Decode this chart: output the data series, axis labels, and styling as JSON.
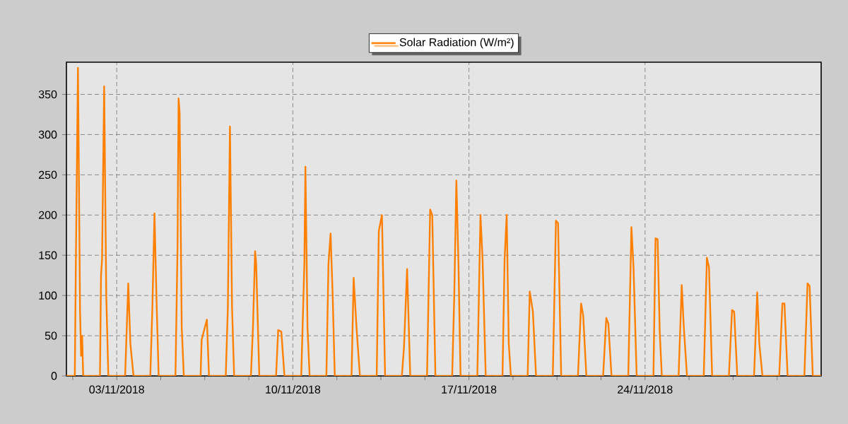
{
  "chart_data": {
    "type": "line",
    "legend": "top",
    "grid": true,
    "marker": "none",
    "line_style": "solid",
    "xlim": [
      "2018-11-01T00:00",
      "2018-12-01T00:00"
    ],
    "ylim": [
      0,
      390
    ],
    "yticks": [
      0,
      50,
      100,
      150,
      200,
      250,
      300,
      350
    ],
    "xticks": [
      {
        "value": "2018-11-01T06:00",
        "label": null
      },
      {
        "value": "2018-11-03T00:00",
        "label": "03/11/2018"
      },
      {
        "value": "2018-11-04T18:00",
        "label": null
      },
      {
        "value": "2018-11-06T12:00",
        "label": null
      },
      {
        "value": "2018-11-08T06:00",
        "label": null
      },
      {
        "value": "2018-11-10T00:00",
        "label": "10/11/2018"
      },
      {
        "value": "2018-11-11T18:00",
        "label": null
      },
      {
        "value": "2018-11-13T12:00",
        "label": null
      },
      {
        "value": "2018-11-15T06:00",
        "label": null
      },
      {
        "value": "2018-11-17T00:00",
        "label": "17/11/2018"
      },
      {
        "value": "2018-11-18T18:00",
        "label": null
      },
      {
        "value": "2018-11-20T12:00",
        "label": null
      },
      {
        "value": "2018-11-22T06:00",
        "label": null
      },
      {
        "value": "2018-11-24T00:00",
        "label": "24/11/2018"
      },
      {
        "value": "2018-11-25T18:00",
        "label": null
      },
      {
        "value": "2018-11-27T12:00",
        "label": null
      },
      {
        "value": "2018-11-29T06:00",
        "label": null
      }
    ],
    "series": [
      {
        "name": "Solar Radiation (W/m²)",
        "color": "#ff8000",
        "x": [
          "2018-11-01T00:00",
          "2018-11-01T08:00",
          "2018-11-01T09:00",
          "2018-11-01T11:00",
          "2018-11-01T13:00",
          "2018-11-01T14:00",
          "2018-11-01T15:00",
          "2018-11-01T16:00",
          "2018-11-02T08:00",
          "2018-11-02T09:00",
          "2018-11-02T10:00",
          "2018-11-02T12:00",
          "2018-11-02T14:00",
          "2018-11-02T16:00",
          "2018-11-03T08:00",
          "2018-11-03T11:00",
          "2018-11-03T13:00",
          "2018-11-03T16:00",
          "2018-11-04T08:00",
          "2018-11-04T10:00",
          "2018-11-04T12:00",
          "2018-11-04T14:00",
          "2018-11-04T16:00",
          "2018-11-05T08:00",
          "2018-11-05T10:00",
          "2018-11-05T11:00",
          "2018-11-05T12:00",
          "2018-11-05T14:00",
          "2018-11-05T16:00",
          "2018-11-06T08:00",
          "2018-11-06T09:00",
          "2018-11-06T14:00",
          "2018-11-06T16:00",
          "2018-11-07T08:00",
          "2018-11-07T10:00",
          "2018-11-07T12:00",
          "2018-11-07T14:00",
          "2018-11-07T16:00",
          "2018-11-08T08:00",
          "2018-11-08T10:00",
          "2018-11-08T12:00",
          "2018-11-08T13:00",
          "2018-11-08T16:00",
          "2018-11-09T08:00",
          "2018-11-09T10:00",
          "2018-11-09T13:00",
          "2018-11-09T16:00",
          "2018-11-10T08:00",
          "2018-11-10T11:00",
          "2018-11-10T12:00",
          "2018-11-10T14:00",
          "2018-11-10T16:00",
          "2018-11-11T08:00",
          "2018-11-11T10:00",
          "2018-11-11T12:00",
          "2018-11-11T14:00",
          "2018-11-11T16:00",
          "2018-11-12T08:00",
          "2018-11-12T10:00",
          "2018-11-12T13:00",
          "2018-11-12T16:00",
          "2018-11-13T08:00",
          "2018-11-13T10:00",
          "2018-11-13T13:00",
          "2018-11-13T16:00",
          "2018-11-14T08:00",
          "2018-11-14T10:00",
          "2018-11-14T13:00",
          "2018-11-14T16:00",
          "2018-11-15T08:00",
          "2018-11-15T11:00",
          "2018-11-15T13:00",
          "2018-11-15T16:00",
          "2018-11-16T08:00",
          "2018-11-16T10:00",
          "2018-11-16T12:00",
          "2018-11-16T14:00",
          "2018-11-16T16:00",
          "2018-11-17T08:00",
          "2018-11-17T11:00",
          "2018-11-17T13:00",
          "2018-11-17T16:00",
          "2018-11-18T08:00",
          "2018-11-18T10:00",
          "2018-11-18T12:00",
          "2018-11-18T14:00",
          "2018-11-18T16:00",
          "2018-11-19T08:00",
          "2018-11-19T10:00",
          "2018-11-19T13:00",
          "2018-11-19T16:00",
          "2018-11-20T08:00",
          "2018-11-20T11:00",
          "2018-11-20T13:00",
          "2018-11-20T16:00",
          "2018-11-21T08:00",
          "2018-11-21T11:00",
          "2018-11-21T13:00",
          "2018-11-21T16:00",
          "2018-11-22T08:00",
          "2018-11-22T11:00",
          "2018-11-22T13:00",
          "2018-11-22T16:00",
          "2018-11-23T08:00",
          "2018-11-23T11:00",
          "2018-11-23T13:00",
          "2018-11-23T16:00",
          "2018-11-24T08:00",
          "2018-11-24T10:00",
          "2018-11-24T12:00",
          "2018-11-24T14:00",
          "2018-11-24T16:00",
          "2018-11-25T08:00",
          "2018-11-25T11:00",
          "2018-11-25T13:00",
          "2018-11-25T16:00",
          "2018-11-26T08:00",
          "2018-11-26T11:00",
          "2018-11-26T13:00",
          "2018-11-26T16:00",
          "2018-11-27T08:00",
          "2018-11-27T11:00",
          "2018-11-27T13:00",
          "2018-11-27T16:00",
          "2018-11-28T08:00",
          "2018-11-28T11:00",
          "2018-11-28T13:00",
          "2018-11-28T16:00",
          "2018-11-29T08:00",
          "2018-11-29T11:00",
          "2018-11-29T13:00",
          "2018-11-29T16:00",
          "2018-11-30T08:00",
          "2018-11-30T11:00",
          "2018-11-30T13:00",
          "2018-11-30T16:00",
          "2018-12-01T00:00"
        ],
        "values": [
          0,
          0,
          140,
          383,
          80,
          25,
          50,
          0,
          0,
          125,
          145,
          360,
          100,
          0,
          0,
          115,
          40,
          0,
          0,
          85,
          202,
          92,
          0,
          0,
          160,
          345,
          327,
          60,
          0,
          0,
          45,
          70,
          0,
          0,
          85,
          310,
          85,
          0,
          0,
          62,
          155,
          140,
          0,
          0,
          57,
          55,
          0,
          0,
          140,
          260,
          60,
          0,
          0,
          140,
          177,
          100,
          0,
          0,
          122,
          55,
          0,
          0,
          180,
          200,
          0,
          0,
          35,
          133,
          0,
          0,
          207,
          200,
          0,
          0,
          100,
          243,
          140,
          0,
          0,
          200,
          145,
          0,
          0,
          145,
          200,
          40,
          0,
          0,
          105,
          80,
          0,
          0,
          193,
          190,
          0,
          0,
          90,
          75,
          0,
          0,
          72,
          65,
          0,
          0,
          185,
          135,
          0,
          0,
          171,
          170,
          55,
          0,
          0,
          113,
          60,
          0,
          0,
          147,
          135,
          0,
          0,
          82,
          80,
          0,
          0,
          104,
          40,
          0,
          0,
          90,
          90,
          0,
          0,
          115,
          112,
          0,
          0
        ]
      }
    ]
  }
}
